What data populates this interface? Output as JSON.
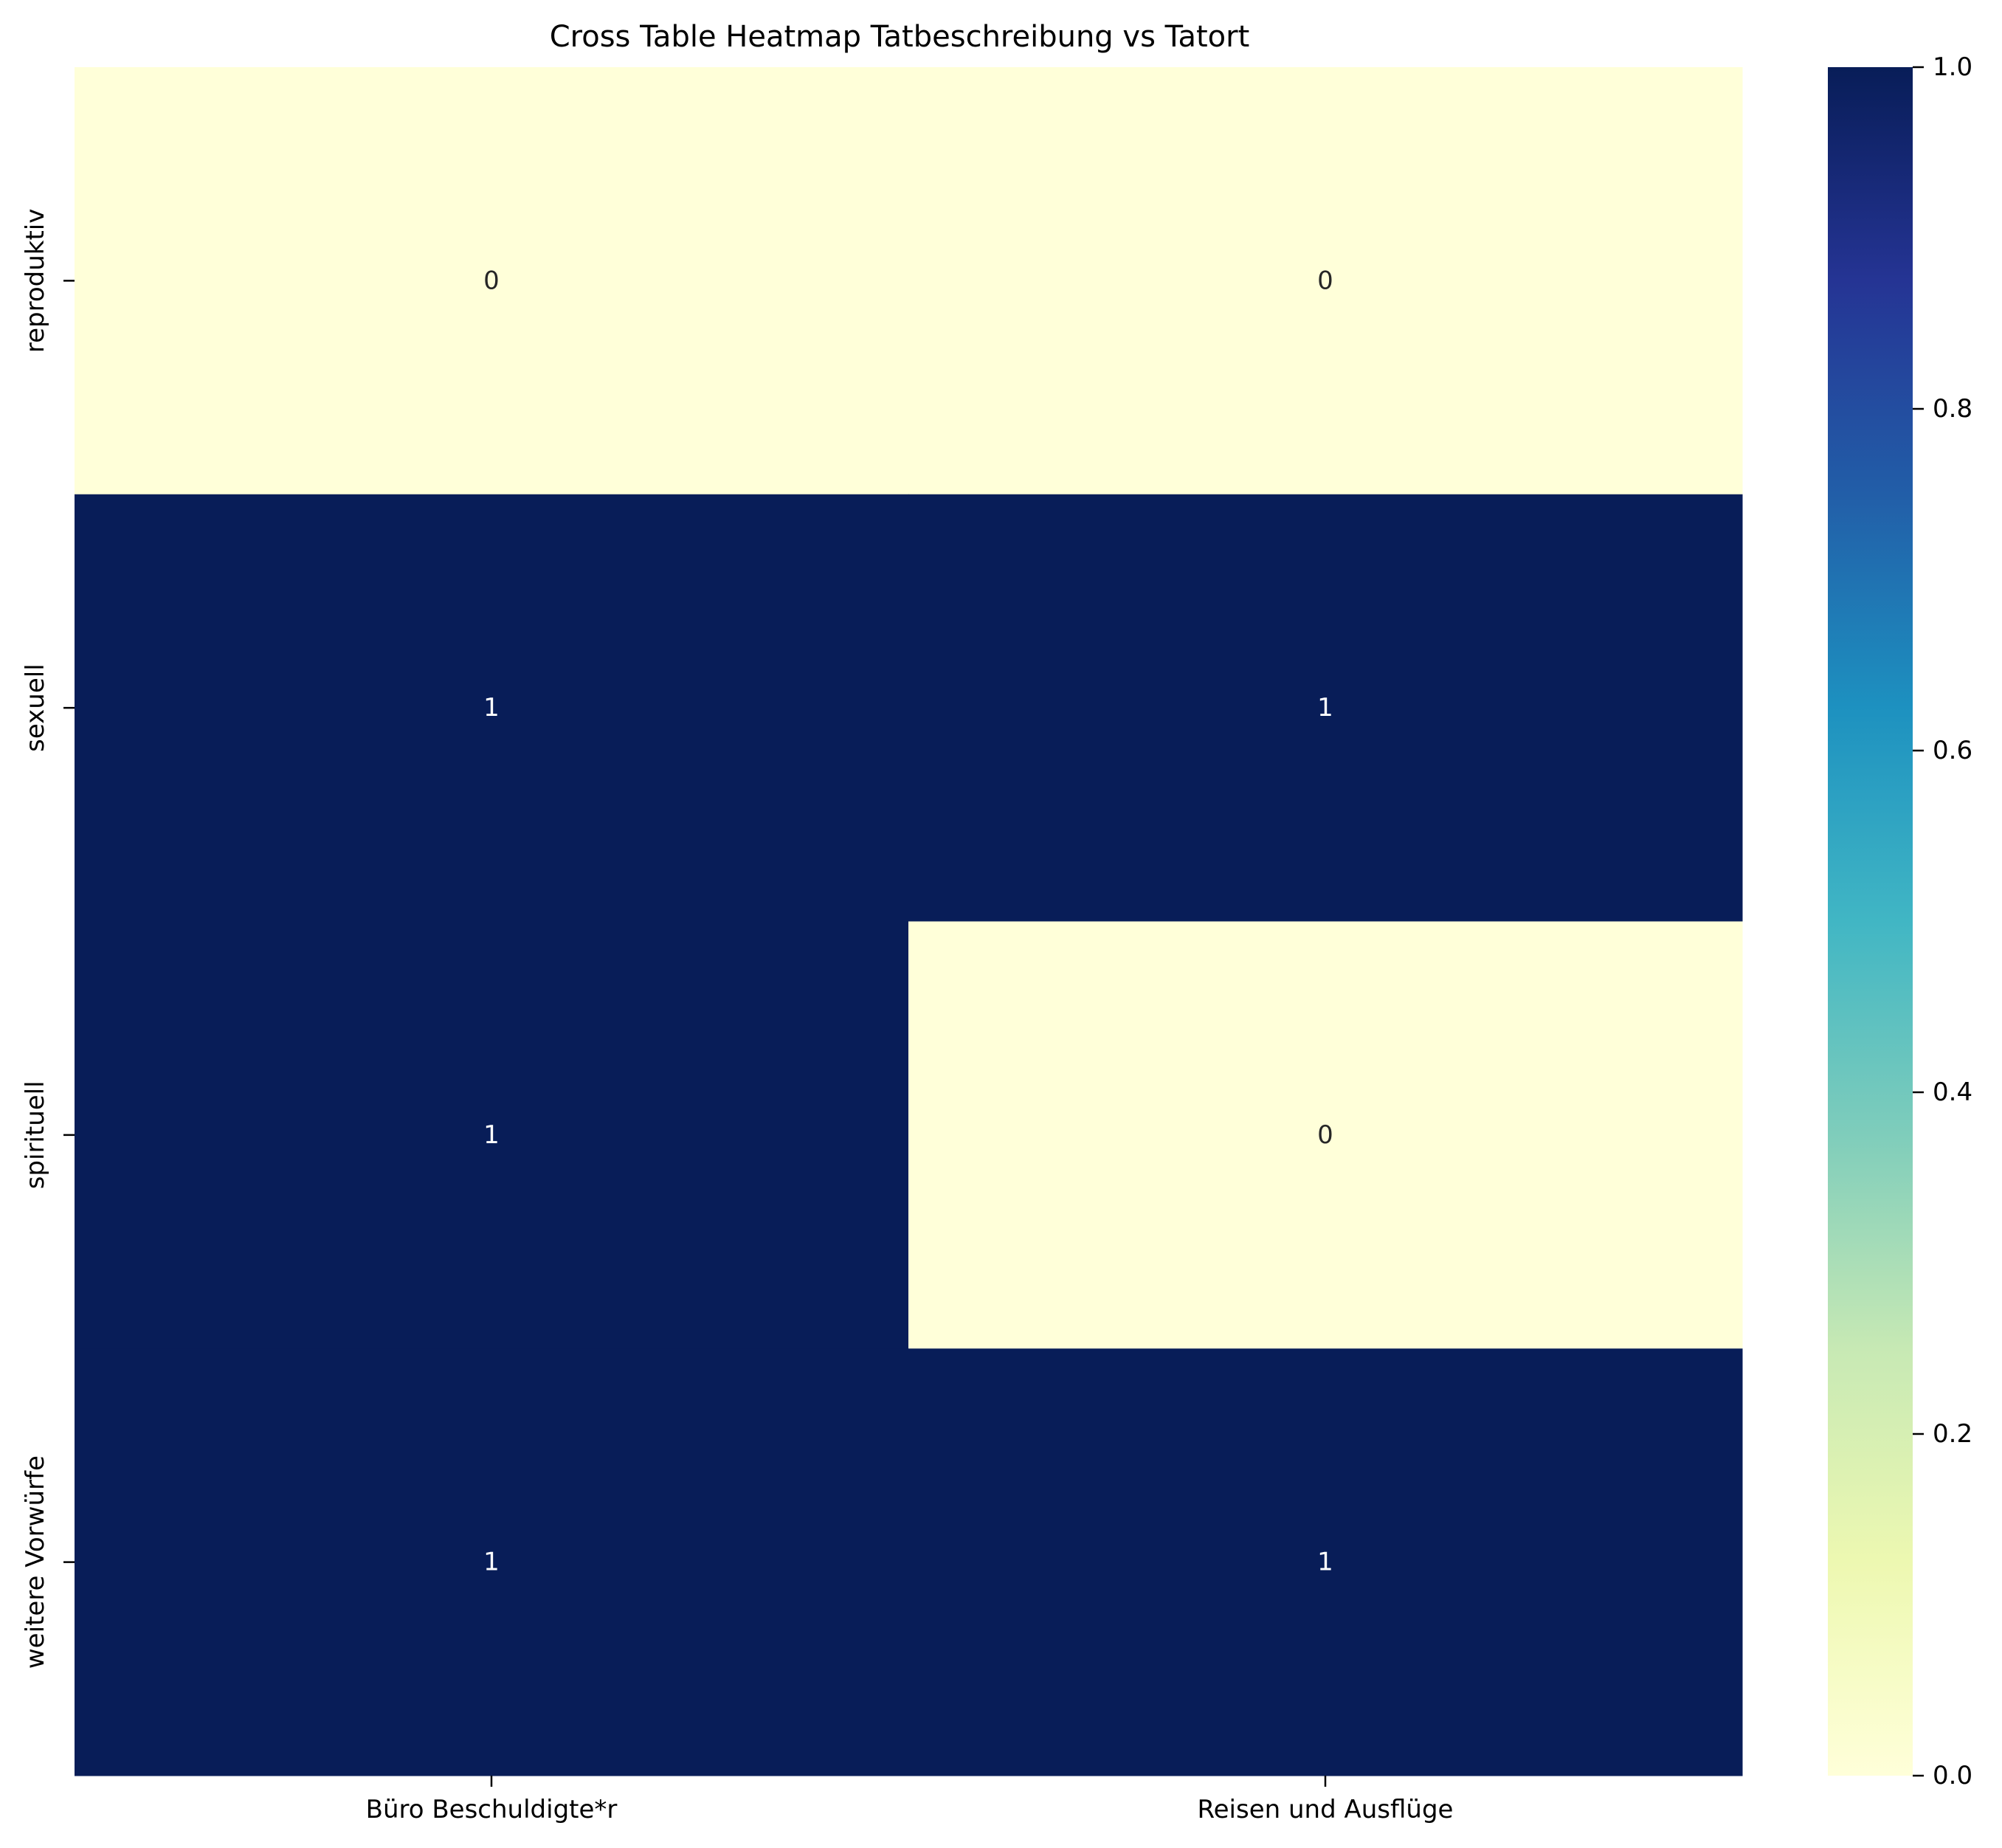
{
  "chart_data": {
    "type": "heatmap",
    "title": "Cross Table Heatmap Tatbeschreibung vs Tatort",
    "xlabel": "",
    "ylabel": "",
    "x_categories": [
      "Büro Beschuldigte*r",
      "Reisen und Ausflüge"
    ],
    "y_categories": [
      "reproduktiv",
      "sexuell",
      "spirituell",
      "weitere Vorwürfe"
    ],
    "values": [
      [
        0,
        0
      ],
      [
        1,
        1
      ],
      [
        1,
        0
      ],
      [
        1,
        1
      ]
    ],
    "annotations": true,
    "colormap": "YlGnBu",
    "vmin": 0,
    "vmax": 1,
    "colorbar_ticks": [
      "0.0",
      "0.2",
      "0.4",
      "0.6",
      "0.8",
      "1.0"
    ],
    "colors": {
      "low": "#ffffd9",
      "high": "#081d58",
      "text_on_low": "#262626",
      "text_on_high": "#ffffff"
    }
  }
}
